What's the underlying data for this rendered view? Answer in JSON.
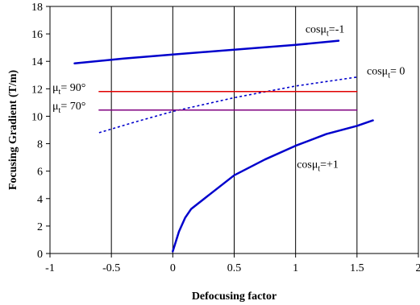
{
  "chart_data": {
    "type": "line",
    "title": "",
    "xlabel": "Defocusing factor",
    "ylabel": "Focusing Gradient (T/m)",
    "xlim": [
      -1,
      2
    ],
    "ylim": [
      0,
      18
    ],
    "x_ticks": [
      -1,
      -0.5,
      0,
      0.5,
      1,
      1.5,
      2
    ],
    "y_ticks": [
      0,
      2,
      4,
      6,
      8,
      10,
      12,
      14,
      16,
      18
    ],
    "x_tick_labels": [
      "-1",
      "-0.5",
      "0",
      "0.5",
      "1",
      "1.5",
      "2"
    ],
    "y_tick_labels": [
      "0",
      "2",
      "4",
      "6",
      "8",
      "10",
      "12",
      "14",
      "16",
      "18"
    ],
    "vertical_grid": true,
    "horizontal_grid": false,
    "series": [
      {
        "name": "cosμt=-1",
        "color": "#0000cc",
        "style": "solid",
        "points": [
          [
            -0.8,
            13.85
          ],
          [
            -0.4,
            14.2
          ],
          [
            0.0,
            14.5
          ],
          [
            0.5,
            14.85
          ],
          [
            1.0,
            15.2
          ],
          [
            1.35,
            15.5
          ]
        ]
      },
      {
        "name": "cosμt= 0",
        "color": "#0000cc",
        "style": "dotted",
        "points": [
          [
            -0.6,
            8.8
          ],
          [
            -0.3,
            9.6
          ],
          [
            0.0,
            10.35
          ],
          [
            0.5,
            11.35
          ],
          [
            1.0,
            12.2
          ],
          [
            1.5,
            12.85
          ]
        ]
      },
      {
        "name": "cosμt=+1",
        "color": "#0000cc",
        "style": "solid",
        "points": [
          [
            0.0,
            0.15
          ],
          [
            0.05,
            1.6
          ],
          [
            0.1,
            2.6
          ],
          [
            0.15,
            3.25
          ],
          [
            0.2,
            3.6
          ],
          [
            0.3,
            4.3
          ],
          [
            0.5,
            5.7
          ],
          [
            0.75,
            6.85
          ],
          [
            1.0,
            7.85
          ],
          [
            1.25,
            8.7
          ],
          [
            1.5,
            9.3
          ],
          [
            1.63,
            9.7
          ]
        ]
      },
      {
        "name": "μt= 90°",
        "color": "#e00000",
        "style": "solid",
        "points": [
          [
            -0.6,
            11.8
          ],
          [
            1.5,
            11.8
          ]
        ]
      },
      {
        "name": "μt= 70°",
        "color": "#800080",
        "style": "solid",
        "points": [
          [
            -0.6,
            10.45
          ],
          [
            1.5,
            10.45
          ]
        ]
      }
    ],
    "annotations": [
      {
        "main": "cosμ",
        "sub": "t",
        "tail": "=-1",
        "x": 1.08,
        "y": 16.1
      },
      {
        "main": "cosμ",
        "sub": "t",
        "tail": "= 0",
        "x": 1.58,
        "y": 13.05
      },
      {
        "main": "cosμ",
        "sub": "t",
        "tail": "=+1",
        "x": 1.01,
        "y": 6.25
      },
      {
        "main": "μ",
        "sub": "t",
        "tail": "= 90°",
        "x": -0.98,
        "y": 11.85
      },
      {
        "main": "μ",
        "sub": "t",
        "tail": "= 70°",
        "x": -0.98,
        "y": 10.5
      }
    ]
  }
}
